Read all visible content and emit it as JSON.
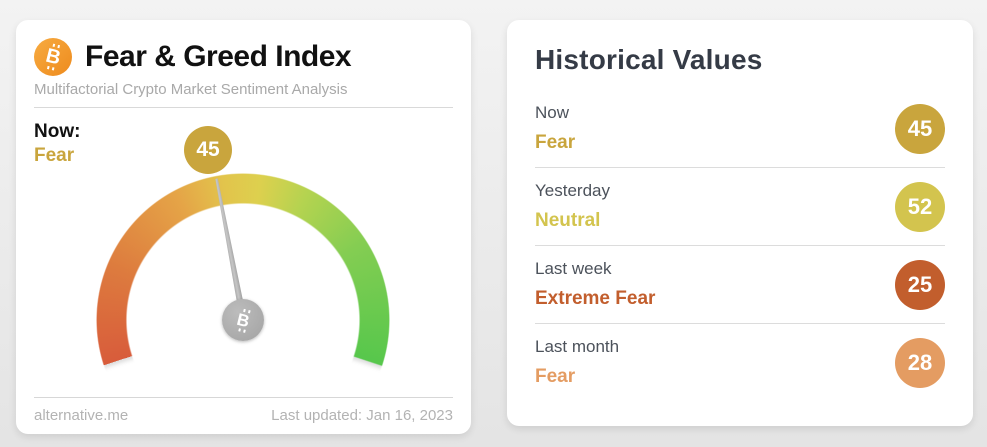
{
  "page": {
    "background": "#e9e9e9"
  },
  "index_card": {
    "title": "Fear & Greed Index",
    "subtitle": "Multifactorial Crypto Market Sentiment Analysis",
    "now_label": "Now:",
    "now_sentiment": "Fear",
    "now_sentiment_color": "#c9a53d",
    "now_value": "45",
    "now_value_color": "#c9a53d",
    "bitcoin_glyph": "B",
    "footer": {
      "source": "alternative.me",
      "last_updated": "Last updated: Jan 16, 2023"
    }
  },
  "historical_card": {
    "title": "Historical Values",
    "rows": [
      {
        "label": "Now",
        "sentiment": "Fear",
        "value": "45",
        "color": "#c9a53d"
      },
      {
        "label": "Yesterday",
        "sentiment": "Neutral",
        "value": "52",
        "color": "#d3c44e"
      },
      {
        "label": "Last week",
        "sentiment": "Extreme Fear",
        "value": "25",
        "color": "#c25e2d"
      },
      {
        "label": "Last month",
        "sentiment": "Fear",
        "value": "28",
        "color": "#e49c62"
      }
    ]
  },
  "chart_data": {
    "type": "gauge",
    "title": "Fear & Greed Index",
    "value": 45,
    "min": 0,
    "max": 100,
    "classification": "Fear",
    "sweep_deg": 216,
    "scale_colors": {
      "low": "#d85c3b",
      "mid": "#e0c94d",
      "high": "#57c74c"
    },
    "needle_color": "#a5a5a5",
    "historical": [
      {
        "period": "Now",
        "classification": "Fear",
        "value": 45
      },
      {
        "period": "Yesterday",
        "classification": "Neutral",
        "value": 52
      },
      {
        "period": "Last week",
        "classification": "Extreme Fear",
        "value": 25
      },
      {
        "period": "Last month",
        "classification": "Fear",
        "value": 28
      }
    ]
  }
}
